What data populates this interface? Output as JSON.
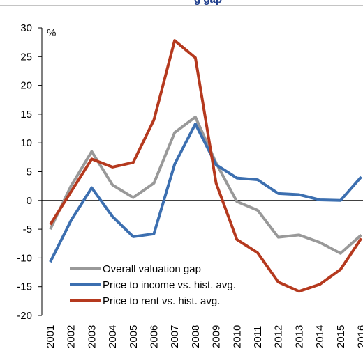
{
  "chart_data": {
    "type": "line",
    "title": "g gap",
    "y_label": "%",
    "categories": [
      "2001",
      "2002",
      "2003",
      "2004",
      "2005",
      "2006",
      "2007",
      "2008",
      "2009",
      "2010",
      "2011",
      "2012",
      "2013",
      "2014",
      "2015",
      "2016"
    ],
    "series": [
      {
        "name": "Overall valuation gap",
        "color": "#999999",
        "values": [
          -5,
          2.5,
          8.5,
          2.7,
          0.5,
          3,
          11.8,
          14.5,
          6.5,
          -0.2,
          -1.7,
          -6.4,
          -6,
          -7.3,
          -9.2,
          -6
        ]
      },
      {
        "name": "Price to income vs. hist. avg.",
        "color": "#3c6fb0",
        "values": [
          -10.7,
          -3.5,
          2.2,
          -2.8,
          -6.3,
          -5.8,
          6.3,
          13.3,
          6.2,
          3.9,
          3.6,
          1.2,
          1.0,
          0.1,
          0.0,
          4.1
        ]
      },
      {
        "name": "Price to rent vs. hist. avg.",
        "color": "#b5391e",
        "values": [
          -4.2,
          1.5,
          7.2,
          5.8,
          6.6,
          14,
          27.8,
          24.8,
          3,
          -6.8,
          -9.1,
          -14.2,
          -15.8,
          -14.6,
          -12,
          -6.6
        ]
      }
    ],
    "ylim": [
      -20,
      30
    ],
    "yticks": [
      -20,
      -15,
      -10,
      -5,
      0,
      5,
      10,
      15,
      20,
      25,
      30
    ]
  }
}
